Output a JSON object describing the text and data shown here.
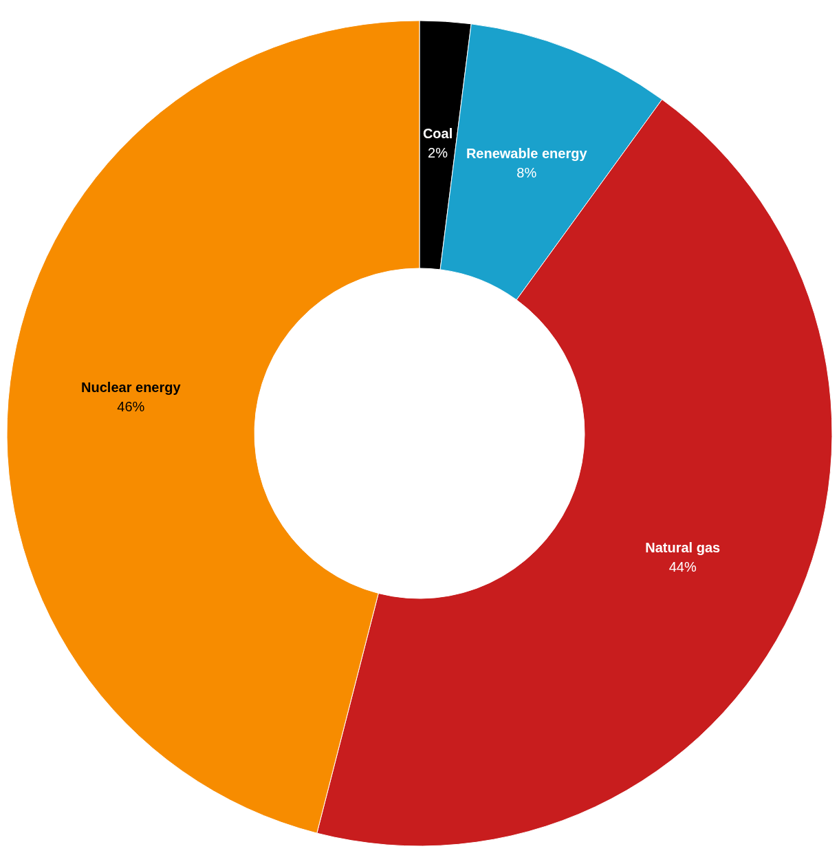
{
  "chart_data": {
    "type": "donut",
    "categories": [
      "Coal",
      "Renewable energy",
      "Natural gas",
      "Nuclear energy"
    ],
    "values": [
      2,
      8,
      44,
      46
    ],
    "colors": [
      "#000000",
      "#1aa1cc",
      "#c81d1e",
      "#f78c00"
    ],
    "value_labels": [
      "2%",
      "8%",
      "44%",
      "46%"
    ],
    "legend": false
  }
}
